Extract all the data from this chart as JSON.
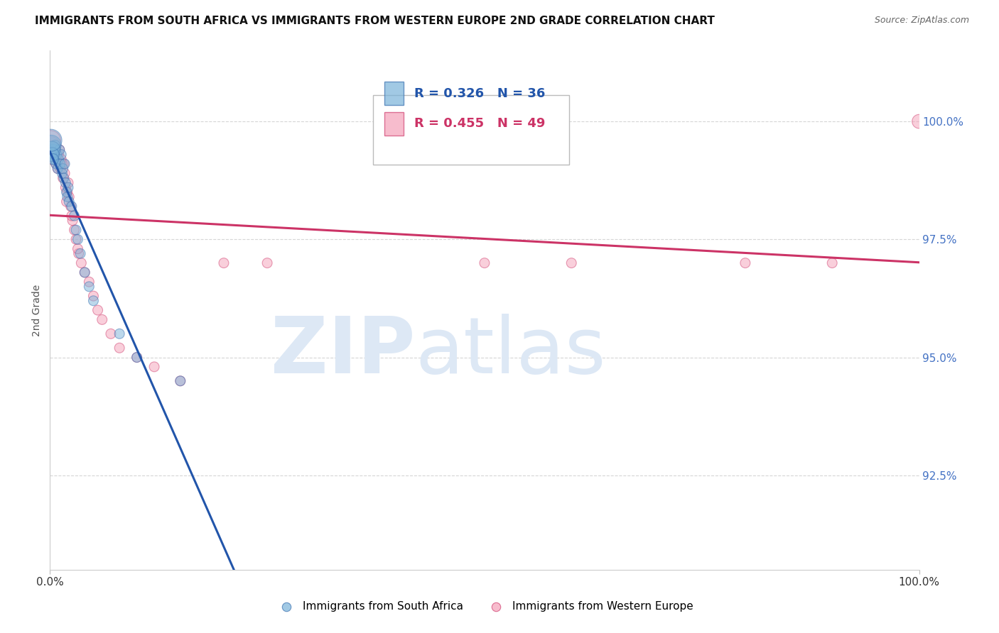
{
  "title": "IMMIGRANTS FROM SOUTH AFRICA VS IMMIGRANTS FROM WESTERN EUROPE 2ND GRADE CORRELATION CHART",
  "source": "Source: ZipAtlas.com",
  "ylabel": "2nd Grade",
  "y_tick_values": [
    92.5,
    95.0,
    97.5,
    100.0
  ],
  "xlim": [
    0.0,
    100.0
  ],
  "ylim": [
    90.5,
    101.5
  ],
  "r_labels": [
    {
      "R": 0.326,
      "N": 36,
      "color": "#4472c4"
    },
    {
      "R": 0.455,
      "N": 49,
      "color": "#e06080"
    }
  ],
  "blue_color": "#7ab3d9",
  "pink_color": "#f4a0b8",
  "blue_edge_color": "#3a70b0",
  "pink_edge_color": "#d04070",
  "blue_line_color": "#2255aa",
  "pink_line_color": "#cc3366",
  "watermark_zip": "ZIP",
  "watermark_atlas": "atlas",
  "watermark_color": "#dde8f5",
  "blue_scatter_x": [
    0.3,
    0.4,
    0.5,
    0.6,
    0.7,
    0.8,
    0.9,
    1.0,
    1.1,
    1.2,
    1.3,
    1.4,
    1.5,
    1.6,
    1.7,
    1.8,
    1.9,
    2.0,
    2.1,
    2.2,
    2.5,
    2.8,
    3.0,
    3.2,
    3.5,
    4.0,
    4.5,
    5.0,
    0.15,
    0.2,
    0.25,
    8.0,
    10.0,
    15.0,
    0.1,
    0.35
  ],
  "blue_scatter_y": [
    99.3,
    99.4,
    99.2,
    99.5,
    99.1,
    99.3,
    99.0,
    99.2,
    99.4,
    99.1,
    99.3,
    98.9,
    99.0,
    98.8,
    99.1,
    98.7,
    98.5,
    98.4,
    98.6,
    98.3,
    98.2,
    98.0,
    97.7,
    97.5,
    97.2,
    96.8,
    96.5,
    96.2,
    99.5,
    99.4,
    99.3,
    95.5,
    95.0,
    94.5,
    99.6,
    99.2
  ],
  "blue_scatter_sizes": [
    30,
    25,
    22,
    20,
    20,
    20,
    20,
    20,
    20,
    20,
    20,
    20,
    20,
    20,
    20,
    20,
    20,
    20,
    20,
    20,
    20,
    20,
    20,
    20,
    20,
    20,
    20,
    20,
    80,
    60,
    40,
    20,
    20,
    20,
    100,
    25
  ],
  "pink_scatter_x": [
    0.3,
    0.4,
    0.5,
    0.6,
    0.7,
    0.8,
    0.9,
    1.0,
    1.1,
    1.2,
    1.3,
    1.5,
    1.6,
    1.7,
    1.8,
    2.0,
    2.1,
    2.2,
    2.4,
    2.6,
    2.8,
    3.0,
    3.3,
    3.6,
    4.0,
    4.5,
    5.0,
    5.5,
    6.0,
    7.0,
    8.0,
    10.0,
    12.0,
    0.15,
    0.2,
    0.25,
    1.4,
    1.9,
    2.5,
    3.2,
    15.0,
    20.0,
    25.0,
    50.0,
    0.1,
    60.0,
    80.0,
    90.0,
    100.0
  ],
  "pink_scatter_sizes": [
    25,
    22,
    20,
    20,
    20,
    20,
    20,
    20,
    20,
    20,
    20,
    20,
    20,
    20,
    20,
    20,
    20,
    20,
    20,
    20,
    20,
    20,
    20,
    20,
    20,
    20,
    20,
    20,
    20,
    20,
    20,
    20,
    20,
    60,
    50,
    40,
    20,
    20,
    20,
    20,
    20,
    20,
    20,
    20,
    80,
    20,
    20,
    20,
    40
  ],
  "pink_scatter_y": [
    99.2,
    99.4,
    99.3,
    99.5,
    99.1,
    99.2,
    99.0,
    99.3,
    99.4,
    99.0,
    99.2,
    98.8,
    99.1,
    98.9,
    98.6,
    98.5,
    98.7,
    98.4,
    98.2,
    97.9,
    97.7,
    97.5,
    97.2,
    97.0,
    96.8,
    96.6,
    96.3,
    96.0,
    95.8,
    95.5,
    95.2,
    95.0,
    94.8,
    99.5,
    99.4,
    99.3,
    99.1,
    98.3,
    98.0,
    97.3,
    94.5,
    97.0,
    97.0,
    97.0,
    99.6,
    97.0,
    97.0,
    97.0,
    100.0
  ],
  "bottom_labels": [
    "Immigrants from South Africa",
    "Immigrants from Western Europe"
  ],
  "bottom_label_colors": [
    "#7ab3d9",
    "#f4a0b8"
  ],
  "grid_color": "#cccccc",
  "background_color": "#ffffff"
}
